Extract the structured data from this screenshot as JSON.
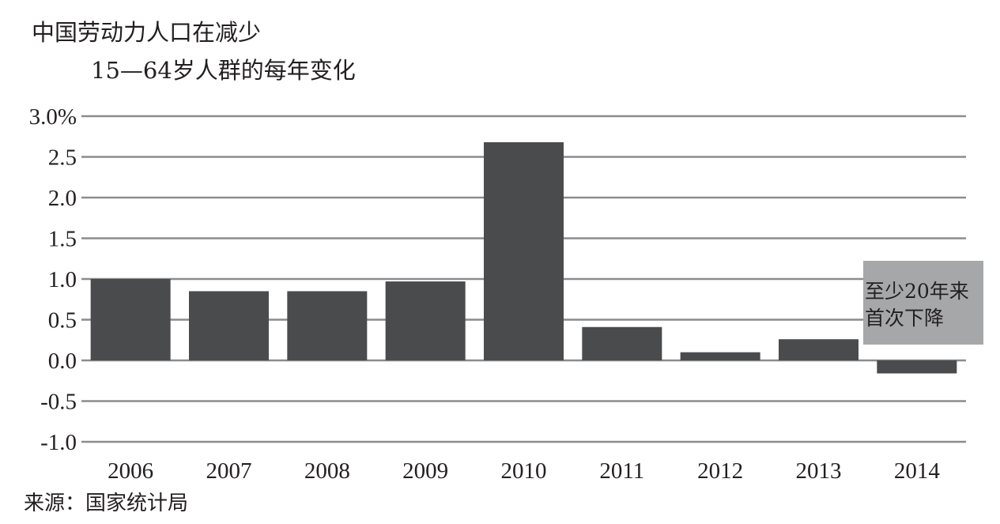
{
  "header": {
    "title": "中国劳动力人口在减少",
    "subtitle": "15—64岁人群的每年变化"
  },
  "footer": {
    "source": "来源：国家统计局"
  },
  "annotation": {
    "text": "至少20年来\n首次下降"
  },
  "colors": {
    "bar": "#4a4b4d",
    "grid": "#8c8c8e",
    "annotation_bg": "#a6a7a9",
    "text": "#231f20"
  },
  "chart_data": {
    "type": "bar",
    "title": "中国劳动力人口在减少",
    "subtitle": "15—64岁人群的每年变化",
    "categories": [
      "2006",
      "2007",
      "2008",
      "2009",
      "2010",
      "2011",
      "2012",
      "2013",
      "2014"
    ],
    "values": [
      1.0,
      0.85,
      0.85,
      0.97,
      2.68,
      0.41,
      0.1,
      0.26,
      -0.16
    ],
    "ylim": [
      -1.0,
      3.0
    ],
    "yticks": [
      3.0,
      2.5,
      2.0,
      1.5,
      1.0,
      0.5,
      0.0,
      -0.5,
      -1.0
    ],
    "ytick_labels": [
      "3.0%",
      "2.5",
      "2.0",
      "1.5",
      "1.0",
      "0.5",
      "0.0",
      "-0.5",
      "-1.0"
    ],
    "grid": true,
    "legend": "none"
  }
}
